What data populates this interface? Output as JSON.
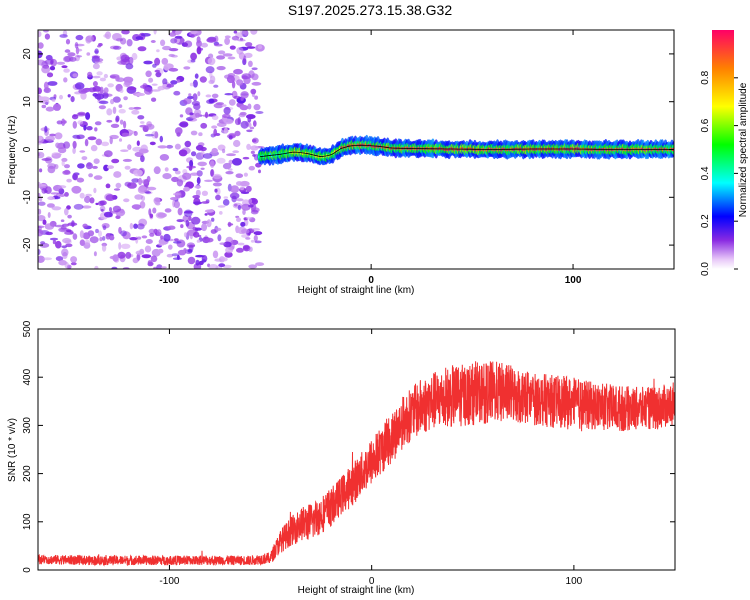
{
  "title": "S197.2025.273.15.38.G32",
  "chart_data": [
    {
      "type": "heatmap",
      "xlabel": "Height of straight line (km)",
      "ylabel": "Frequency (Hz)",
      "xlim": [
        -165,
        150
      ],
      "ylim": [
        -25,
        25
      ],
      "xticks": [
        -100,
        0,
        100
      ],
      "yticks": [
        -20,
        -10,
        0,
        10,
        20
      ],
      "colorbar": {
        "label": "Normalized spectral amplitude",
        "range": [
          0,
          1
        ],
        "ticks": [
          0.0,
          0.2,
          0.4,
          0.6,
          0.8
        ],
        "tick_labels": [
          "0.0",
          "0.2",
          "0.4",
          "0.6",
          "0.8"
        ]
      },
      "noise_region_x": [
        -165,
        -55
      ],
      "signal_track": {
        "x": [
          -55,
          -45,
          -38,
          -32,
          -25,
          -20,
          -15,
          -10,
          -5,
          0,
          5,
          10,
          20,
          40,
          60,
          80,
          100,
          120,
          150
        ],
        "freq": [
          -1.5,
          -1.0,
          -0.5,
          -0.8,
          -1.5,
          -1.2,
          0.2,
          0.8,
          0.9,
          0.8,
          0.6,
          0.3,
          0.2,
          0.1,
          0.0,
          0.1,
          0.1,
          0.0,
          0.0
        ]
      }
    },
    {
      "type": "line",
      "xlabel": "Height of straight line (km)",
      "ylabel": "SNR (10 * v/v)",
      "xlim": [
        -165,
        150
      ],
      "ylim": [
        0,
        500
      ],
      "xticks": [
        -100,
        0,
        100
      ],
      "yticks": [
        0,
        100,
        200,
        300,
        400,
        500
      ],
      "color": "#f03030",
      "series": {
        "x": [
          -165,
          -140,
          -120,
          -100,
          -80,
          -60,
          -50,
          -45,
          -40,
          -35,
          -30,
          -25,
          -20,
          -15,
          -10,
          -5,
          0,
          5,
          10,
          15,
          20,
          25,
          30,
          40,
          50,
          60,
          70,
          80,
          90,
          100,
          110,
          120,
          130,
          140,
          150
        ],
        "mean": [
          22,
          20,
          20,
          20,
          20,
          20,
          25,
          60,
          80,
          95,
          100,
          115,
          130,
          155,
          175,
          200,
          225,
          250,
          275,
          305,
          325,
          340,
          350,
          360,
          365,
          370,
          365,
          355,
          350,
          345,
          340,
          335,
          335,
          335,
          345
        ],
        "spread": [
          10,
          10,
          10,
          10,
          10,
          10,
          12,
          25,
          30,
          35,
          40,
          40,
          40,
          40,
          45,
          45,
          50,
          50,
          55,
          55,
          55,
          60,
          60,
          65,
          65,
          65,
          60,
          55,
          55,
          55,
          50,
          50,
          45,
          45,
          45
        ]
      }
    }
  ]
}
